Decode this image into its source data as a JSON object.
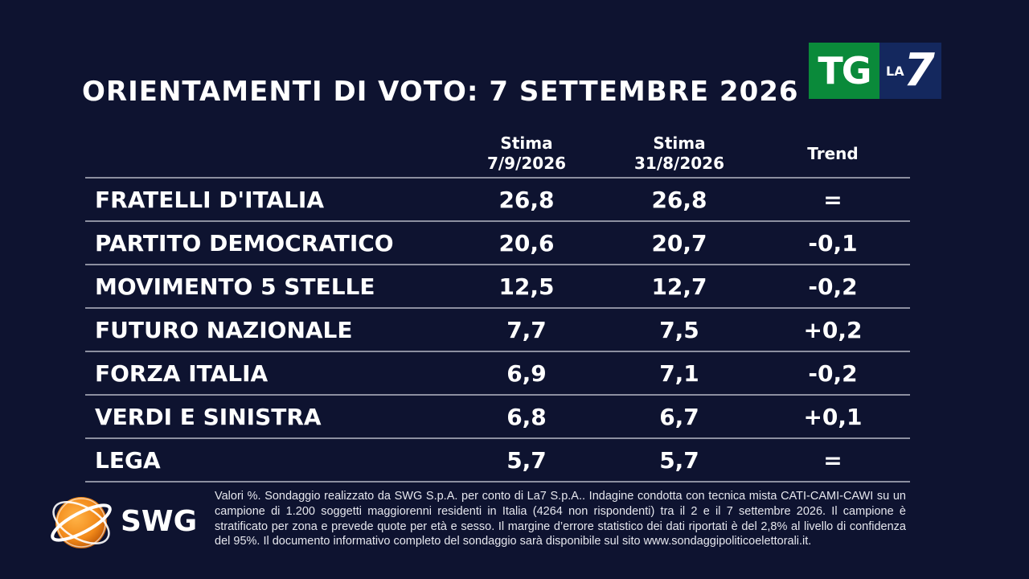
{
  "title": "ORIENTAMENTI DI VOTO: 7 SETTEMBRE 2026",
  "broadcaster_logo": {
    "tg": "TG",
    "la": "LA",
    "seven": "7"
  },
  "pollster_logo": {
    "text": "SWG",
    "colors": {
      "orange": "#f28a1a",
      "white": "#ffffff"
    }
  },
  "chart_data": {
    "type": "table",
    "columns": [
      {
        "line1": "Stima",
        "line2": "7/9/2026"
      },
      {
        "line1": "Stima",
        "line2": "31/8/2026"
      },
      {
        "line1": "Trend",
        "line2": ""
      }
    ],
    "rows": [
      {
        "party": "FRATELLI D'ITALIA",
        "current": "26,8",
        "previous": "26,8",
        "trend": "="
      },
      {
        "party": "PARTITO DEMOCRATICO",
        "current": "20,6",
        "previous": "20,7",
        "trend": "-0,1"
      },
      {
        "party": "MOVIMENTO 5 STELLE",
        "current": "12,5",
        "previous": "12,7",
        "trend": "-0,2"
      },
      {
        "party": "FUTURO NAZIONALE",
        "current": "7,7",
        "previous": "7,5",
        "trend": "+0,2"
      },
      {
        "party": "FORZA ITALIA",
        "current": "6,9",
        "previous": "7,1",
        "trend": "-0,2"
      },
      {
        "party": "VERDI E SINISTRA",
        "current": "6,8",
        "previous": "6,7",
        "trend": "+0,1"
      },
      {
        "party": "LEGA",
        "current": "5,7",
        "previous": "5,7",
        "trend": "="
      }
    ]
  },
  "footnote": "Valori %. Sondaggio realizzato da SWG S.p.A. per conto di La7 S.p.A.. Indagine condotta con tecnica mista CATI-CAMI-CAWI su un campione di 1.200 soggetti maggiorenni residenti in Italia (4264 non rispondenti) tra il 2 e il 7 settembre 2026. Il campione è stratificato per zona e prevede quote per età e sesso. Il margine d’errore statistico dei dati riportati è del 2,8% al livello di confidenza del 95%. Il documento informativo completo del sondaggio sarà disponibile sul sito www.sondaggipoliticoelettorali.it.",
  "colors": {
    "background": "#0e1330",
    "rule": "#8c8fa0",
    "tg_green": "#0a8a3a",
    "la7_blue": "#14285e"
  }
}
